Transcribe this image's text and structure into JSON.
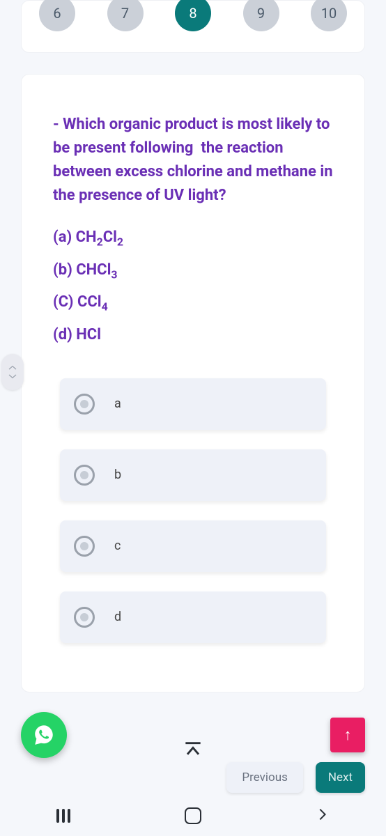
{
  "pager": {
    "items": [
      {
        "label": "6",
        "active": false
      },
      {
        "label": "7",
        "active": false
      },
      {
        "label": "8",
        "active": true
      },
      {
        "label": "9",
        "active": false
      },
      {
        "label": "10",
        "active": false
      }
    ]
  },
  "question": {
    "text_html": "- Which organic product is most likely to be present following &nbsp;the reaction between excess chlorine and methane in the presence of UV light?",
    "options_html": [
      "(a) CH<sub>2</sub>Cl<sub>2</sub>",
      "(b) CHCl<sub>3</sub>",
      "(C) CCl<sub>4</sub>",
      "(d) HCl"
    ]
  },
  "answers": [
    {
      "label": "a"
    },
    {
      "label": "b"
    },
    {
      "label": "c"
    },
    {
      "label": "d"
    }
  ],
  "buttons": {
    "previous": "Previous",
    "next": "Next"
  },
  "colors": {
    "accent_purple": "#6a2fb5",
    "pager_active": "#0a7a7a",
    "fab_green": "#25d366",
    "scrolltop_pink": "#e91e63"
  }
}
